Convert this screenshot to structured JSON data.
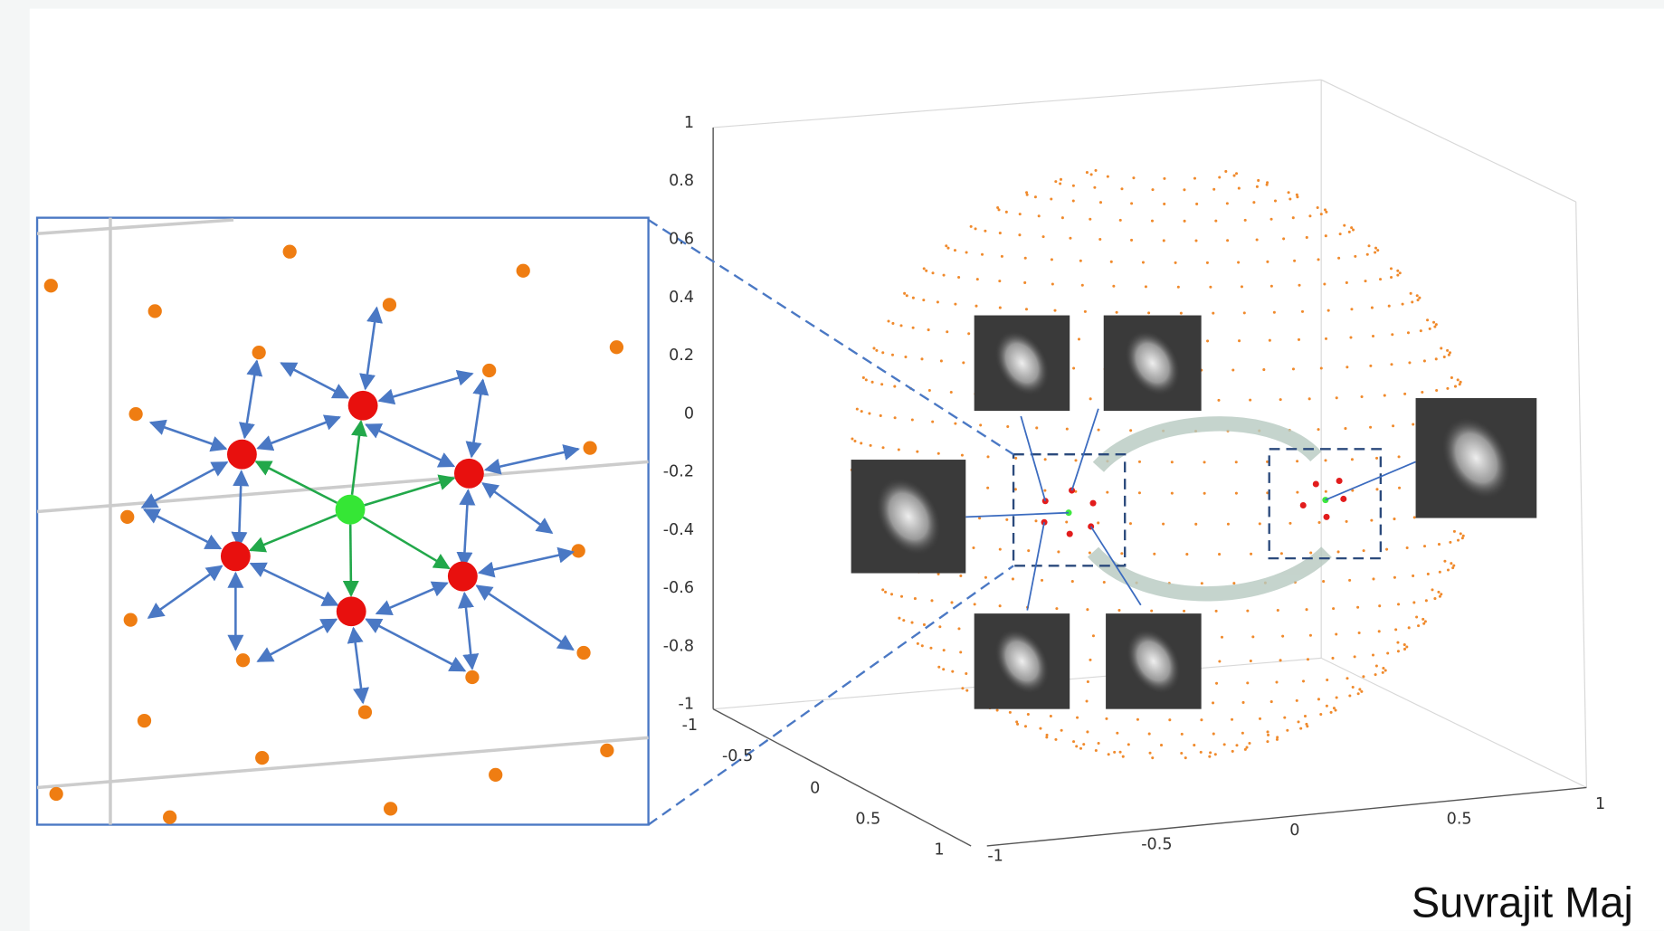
{
  "z_axis": {
    "tick_labels": [
      "1",
      "0.8",
      "0.6",
      "0.4",
      "0.2",
      "0",
      "-0.2",
      "-0.4",
      "-0.6",
      "-0.8",
      "-1"
    ]
  },
  "y_axis": {
    "tick_labels": [
      "-1",
      "-0.5",
      "0",
      "0.5",
      "1"
    ]
  },
  "x_axis": {
    "tick_labels": [
      "-1",
      "-0.5",
      "0",
      "0.5",
      "1"
    ]
  },
  "credit": "Suvrajit Maj"
}
